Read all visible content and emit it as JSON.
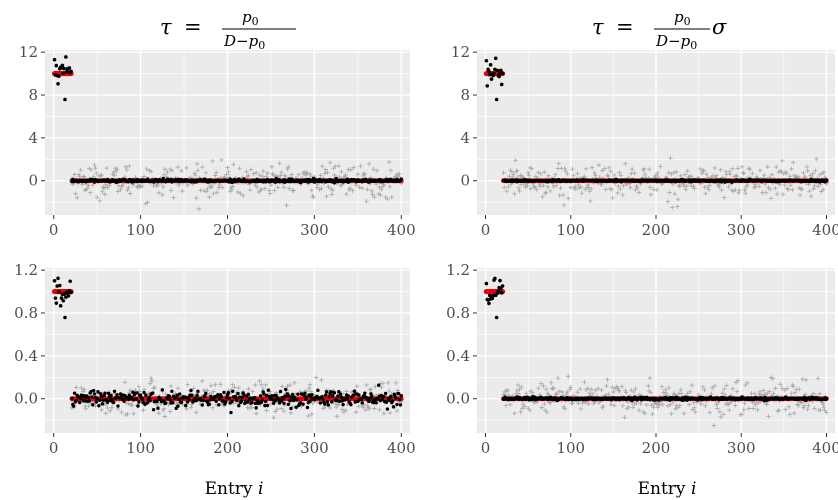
{
  "titles": {
    "left": {
      "tau": "τ",
      "eq": "=",
      "num": "p",
      "num_sub": "0",
      "den": "D−p",
      "den_sub": "0",
      "suffix": ""
    },
    "right": {
      "tau": "τ",
      "eq": "=",
      "num": "p",
      "num_sub": "0",
      "den": "D−p",
      "den_sub": "0",
      "suffix": "σ"
    }
  },
  "xlabel": {
    "text": "Entry ",
    "var": "i"
  },
  "colors": {
    "panel_bg": "#ebebeb",
    "grid_major": "#ffffff",
    "estimate": "#000000",
    "truth": "#e8000b",
    "noise": "#a6a6a6"
  },
  "chart_data": [
    {
      "type": "scatter",
      "panel": "top-left",
      "xlim": [
        -10,
        410
      ],
      "ylim": [
        -3.2,
        12.2
      ],
      "xticks": [
        "0",
        "100",
        "200",
        "300",
        "400"
      ],
      "xtick_values": [
        0,
        100,
        200,
        300,
        400
      ],
      "yticks": [
        "0",
        "4",
        "8",
        "12"
      ],
      "ytick_values": [
        0,
        4,
        8,
        12
      ],
      "signal": {
        "entries": [
          1,
          20
        ],
        "true_value": 10,
        "estimate_spread": 1.1
      },
      "null": {
        "entries": [
          21,
          400
        ],
        "true_value": 0,
        "estimate_spread": 0.12,
        "noise_spread": 1.0
      },
      "show_xlabel": false
    },
    {
      "type": "scatter",
      "panel": "top-right",
      "xlim": [
        -10,
        410
      ],
      "ylim": [
        -3.2,
        12.2
      ],
      "xticks": [
        "0",
        "100",
        "200",
        "300",
        "400"
      ],
      "xtick_values": [
        0,
        100,
        200,
        300,
        400
      ],
      "yticks": [
        "0",
        "4",
        "8",
        "12"
      ],
      "ytick_values": [
        0,
        4,
        8,
        12
      ],
      "signal": {
        "entries": [
          1,
          20
        ],
        "true_value": 10,
        "estimate_spread": 1.1
      },
      "null": {
        "entries": [
          21,
          400
        ],
        "true_value": 0,
        "estimate_spread": 0.08,
        "noise_spread": 1.0
      },
      "show_xlabel": false
    },
    {
      "type": "scatter",
      "panel": "bottom-left",
      "xlim": [
        -10,
        410
      ],
      "ylim": [
        -0.32,
        1.22
      ],
      "xticks": [
        "0",
        "100",
        "200",
        "300",
        "400"
      ],
      "xtick_values": [
        0,
        100,
        200,
        300,
        400
      ],
      "yticks": [
        "0.0",
        "0.4",
        "0.8",
        "1.2"
      ],
      "ytick_values": [
        0,
        0.4,
        0.8,
        1.2
      ],
      "signal": {
        "entries": [
          1,
          20
        ],
        "true_value": 1.0,
        "estimate_spread": 0.11
      },
      "null": {
        "entries": [
          21,
          400
        ],
        "true_value": 0,
        "estimate_spread": 0.065,
        "noise_spread": 0.1
      },
      "show_xlabel": true
    },
    {
      "type": "scatter",
      "panel": "bottom-right",
      "xlim": [
        -10,
        410
      ],
      "ylim": [
        -0.32,
        1.22
      ],
      "xticks": [
        "0",
        "100",
        "200",
        "300",
        "400"
      ],
      "xtick_values": [
        0,
        100,
        200,
        300,
        400
      ],
      "yticks": [
        "0.0",
        "0.4",
        "0.8",
        "1.2"
      ],
      "ytick_values": [
        0,
        0.4,
        0.8,
        1.2
      ],
      "signal": {
        "entries": [
          1,
          20
        ],
        "true_value": 1.0,
        "estimate_spread": 0.11
      },
      "null": {
        "entries": [
          21,
          400
        ],
        "true_value": 0,
        "estimate_spread": 0.012,
        "noise_spread": 0.1
      },
      "show_xlabel": true
    }
  ]
}
